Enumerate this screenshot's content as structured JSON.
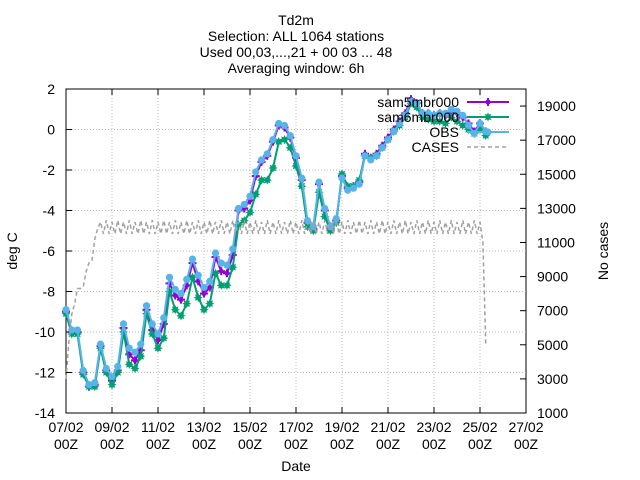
{
  "chart_data": {
    "type": "line",
    "title_lines": [
      "Td2m",
      "Selection: ALL   1064 stations",
      "Used 00,03,...,21 + 00 03 ... 48",
      "Averaging window:  6h"
    ],
    "xlabel": "Date",
    "ylabel": "deg C",
    "y2label": "No cases",
    "xlim": [
      0,
      20
    ],
    "ylim": [
      -14,
      2
    ],
    "y2lim": [
      1000,
      20000
    ],
    "grid": true,
    "legend_position": "top-right",
    "x_ticks": [
      {
        "x": 0,
        "line1": "07/02",
        "line2": "00Z"
      },
      {
        "x": 2,
        "line1": "09/02",
        "line2": "00Z"
      },
      {
        "x": 4,
        "line1": "11/02",
        "line2": "00Z"
      },
      {
        "x": 6,
        "line1": "13/02",
        "line2": "00Z"
      },
      {
        "x": 8,
        "line1": "15/02",
        "line2": "00Z"
      },
      {
        "x": 10,
        "line1": "17/02",
        "line2": "00Z"
      },
      {
        "x": 12,
        "line1": "19/02",
        "line2": "00Z"
      },
      {
        "x": 14,
        "line1": "21/02",
        "line2": "00Z"
      },
      {
        "x": 16,
        "line1": "23/02",
        "line2": "00Z"
      },
      {
        "x": 18,
        "line1": "25/02",
        "line2": "00Z"
      },
      {
        "x": 20,
        "line1": "27/02",
        "line2": "00Z"
      }
    ],
    "y_ticks": [
      "2",
      "0",
      "-2",
      "-4",
      "-6",
      "-8",
      "-10",
      "-12",
      "-14"
    ],
    "y2_ticks": [
      "19000",
      "17000",
      "15000",
      "13000",
      "11000",
      "9000",
      "7000",
      "5000",
      "3000",
      "1000"
    ],
    "series": [
      {
        "name": "sam5mbr000",
        "color": "#9400d3",
        "axis": "y",
        "marker": "plus",
        "x": [
          0,
          0.25,
          0.5,
          0.75,
          1.0,
          1.25,
          1.5,
          1.75,
          2.0,
          2.25,
          2.5,
          2.75,
          3.0,
          3.25,
          3.5,
          3.75,
          4.0,
          4.25,
          4.5,
          4.75,
          5.0,
          5.25,
          5.5,
          5.75,
          6.0,
          6.25,
          6.5,
          6.75,
          7.0,
          7.25,
          7.5,
          7.75,
          8.0,
          8.25,
          8.5,
          8.75,
          9.0,
          9.25,
          9.5,
          9.75,
          10.0,
          10.25,
          10.5,
          10.75,
          11.0,
          11.25,
          11.5,
          11.75,
          12.0,
          12.25,
          12.5,
          12.75,
          13.0,
          13.25,
          13.5,
          13.75,
          14.0,
          14.25,
          14.5,
          14.75,
          15.0,
          15.25,
          15.5,
          15.75,
          16.0,
          16.25,
          16.5,
          16.75,
          17.0,
          17.25,
          17.5,
          17.75,
          18.0,
          18.25
        ],
        "values": [
          -9.0,
          -10.0,
          -10.0,
          -12.0,
          -12.7,
          -12.6,
          -10.7,
          -11.9,
          -12.4,
          -11.9,
          -9.8,
          -11.1,
          -11.4,
          -10.9,
          -8.9,
          -9.9,
          -10.4,
          -9.6,
          -7.6,
          -8.2,
          -8.4,
          -7.7,
          -6.6,
          -7.5,
          -8.1,
          -7.8,
          -6.3,
          -7.0,
          -7.1,
          -6.2,
          -4.0,
          -3.9,
          -3.5,
          -2.3,
          -1.6,
          -1.3,
          -0.6,
          0.2,
          0.1,
          -0.4,
          -1.4,
          -2.5,
          -4.6,
          -4.9,
          -2.7,
          -4.0,
          -4.9,
          -4.5,
          -2.3,
          -2.9,
          -2.8,
          -2.6,
          -1.2,
          -1.4,
          -1.2,
          -0.8,
          -0.4,
          0.0,
          0.4,
          0.8,
          1.5,
          1.3,
          0.8,
          0.8,
          0.7,
          0.8,
          0.7,
          0.9,
          0.8,
          0.6,
          0.3,
          -0.1,
          0.3,
          -0.1
        ]
      },
      {
        "name": "sam6mbr000",
        "color": "#009e73",
        "axis": "y",
        "marker": "star",
        "x": [
          0,
          0.25,
          0.5,
          0.75,
          1.0,
          1.25,
          1.5,
          1.75,
          2.0,
          2.25,
          2.5,
          2.75,
          3.0,
          3.25,
          3.5,
          3.75,
          4.0,
          4.25,
          4.5,
          4.75,
          5.0,
          5.25,
          5.5,
          5.75,
          6.0,
          6.25,
          6.5,
          6.75,
          7.0,
          7.25,
          7.5,
          7.75,
          8.0,
          8.25,
          8.5,
          8.75,
          9.0,
          9.25,
          9.5,
          9.75,
          10.0,
          10.25,
          10.5,
          10.75,
          11.0,
          11.25,
          11.5,
          11.75,
          12.0,
          12.25,
          12.5,
          12.75,
          13.0,
          13.25,
          13.5,
          13.75,
          14.0,
          14.25,
          14.5,
          14.75,
          15.0,
          15.25,
          15.5,
          15.75,
          16.0,
          16.25,
          16.5,
          16.75,
          17.0,
          17.25,
          17.5,
          17.75,
          18.0,
          18.25
        ],
        "values": [
          -9.1,
          -10.1,
          -10.1,
          -12.1,
          -12.7,
          -12.7,
          -10.8,
          -12.0,
          -12.6,
          -12.0,
          -10.0,
          -11.6,
          -11.8,
          -11.2,
          -9.1,
          -10.1,
          -10.8,
          -10.3,
          -8.0,
          -8.9,
          -9.2,
          -8.6,
          -7.3,
          -8.3,
          -8.9,
          -8.6,
          -7.1,
          -7.7,
          -7.7,
          -6.8,
          -4.7,
          -4.5,
          -4.1,
          -3.2,
          -2.5,
          -2.5,
          -1.9,
          -0.6,
          -0.5,
          -0.9,
          -1.8,
          -2.8,
          -4.8,
          -5.0,
          -3.1,
          -4.3,
          -5.0,
          -4.6,
          -2.2,
          -2.8,
          -2.8,
          -2.5,
          -1.3,
          -1.4,
          -1.3,
          -0.9,
          -0.5,
          -0.1,
          0.2,
          0.6,
          1.3,
          1.1,
          0.6,
          0.5,
          0.4,
          0.4,
          0.3,
          0.6,
          0.4,
          0.2,
          0.0,
          -0.2,
          0.0,
          -0.3
        ]
      },
      {
        "name": "OBS",
        "color": "#56b4e9",
        "axis": "y",
        "marker": "circle",
        "x": [
          0,
          0.25,
          0.5,
          0.75,
          1.0,
          1.25,
          1.5,
          1.75,
          2.0,
          2.25,
          2.5,
          2.75,
          3.0,
          3.25,
          3.5,
          3.75,
          4.0,
          4.25,
          4.5,
          4.75,
          5.0,
          5.25,
          5.5,
          5.75,
          6.0,
          6.25,
          6.5,
          6.75,
          7.0,
          7.25,
          7.5,
          7.75,
          8.0,
          8.25,
          8.5,
          8.75,
          9.0,
          9.25,
          9.5,
          9.75,
          10.0,
          10.25,
          10.5,
          10.75,
          11.0,
          11.25,
          11.5,
          11.75,
          12.0,
          12.25,
          12.5,
          12.75,
          13.0,
          13.25,
          13.5,
          13.75,
          14.0,
          14.25,
          14.5,
          14.75,
          15.0,
          15.25,
          15.5,
          15.75,
          16.0,
          16.25,
          16.5,
          16.75,
          17.0,
          17.25,
          17.5,
          17.75,
          18.0,
          18.25
        ],
        "values": [
          -8.9,
          -9.9,
          -9.9,
          -11.9,
          -12.6,
          -12.5,
          -10.6,
          -11.8,
          -12.2,
          -11.7,
          -9.6,
          -10.8,
          -11.0,
          -10.6,
          -8.7,
          -9.6,
          -10.1,
          -9.3,
          -7.3,
          -7.9,
          -8.1,
          -7.4,
          -6.4,
          -7.2,
          -7.8,
          -7.5,
          -6.1,
          -6.6,
          -6.7,
          -5.9,
          -3.9,
          -3.7,
          -3.3,
          -2.1,
          -1.5,
          -1.2,
          -0.5,
          0.3,
          0.2,
          -0.3,
          -1.3,
          -2.4,
          -4.5,
          -4.8,
          -2.6,
          -3.9,
          -4.8,
          -4.4,
          -2.4,
          -3.0,
          -2.9,
          -2.7,
          -1.3,
          -1.5,
          -1.3,
          -0.9,
          -0.5,
          -0.1,
          0.3,
          0.7,
          1.4,
          1.3,
          0.8,
          0.8,
          0.7,
          0.8,
          0.8,
          1.0,
          0.9,
          0.7,
          0.2,
          -0.2,
          0.3,
          -0.1
        ]
      },
      {
        "name": "CASES",
        "color": "#a0a0a0",
        "axis": "y2",
        "marker": "none",
        "x": [
          0,
          0.125,
          0.25,
          0.375,
          0.5,
          0.625,
          0.75,
          0.875,
          1.0,
          1.125,
          1.25,
          1.375,
          1.5,
          1.625,
          1.75,
          1.875,
          2.0,
          2.125,
          2.25,
          2.375,
          2.5,
          2.625,
          2.75,
          2.875,
          3.0,
          3.125,
          3.25,
          3.375,
          3.5,
          3.625,
          3.75,
          3.875,
          4.0,
          4.125,
          4.25,
          4.375,
          4.5,
          4.625,
          4.75,
          4.875,
          5.0,
          5.125,
          5.25,
          5.375,
          5.5,
          5.625,
          5.75,
          5.875,
          6.0,
          6.125,
          6.25,
          6.375,
          6.5,
          6.625,
          6.75,
          6.875,
          7.0,
          7.125,
          7.25,
          7.375,
          7.5,
          7.625,
          7.75,
          7.875,
          8.0,
          8.125,
          8.25,
          8.375,
          8.5,
          8.625,
          8.75,
          8.875,
          9.0,
          9.125,
          9.25,
          9.375,
          9.5,
          9.625,
          9.75,
          9.875,
          10.0,
          10.125,
          10.25,
          10.375,
          10.5,
          10.625,
          10.75,
          10.875,
          11.0,
          11.125,
          11.25,
          11.375,
          11.5,
          11.625,
          11.75,
          11.875,
          12.0,
          12.125,
          12.25,
          12.375,
          12.5,
          12.625,
          12.75,
          12.875,
          13.0,
          13.125,
          13.25,
          13.375,
          13.5,
          13.625,
          13.75,
          13.875,
          14.0,
          14.125,
          14.25,
          14.375,
          14.5,
          14.625,
          14.75,
          14.875,
          15.0,
          15.125,
          15.25,
          15.375,
          15.5,
          15.625,
          15.75,
          15.875,
          16.0,
          16.125,
          16.25,
          16.375,
          16.5,
          16.625,
          16.75,
          16.875,
          17.0,
          17.125,
          17.25,
          17.375,
          17.5,
          17.625,
          17.75,
          17.875,
          18.0,
          18.125,
          18.25
        ],
        "values": [
          3000,
          5200,
          6800,
          7400,
          8300,
          8300,
          8400,
          9300,
          9800,
          9900,
          11200,
          11800,
          12200,
          11500,
          12300,
          11500,
          12200,
          11500,
          12300,
          11500,
          12200,
          11500,
          12300,
          11500,
          12200,
          11500,
          12300,
          11500,
          12200,
          11500,
          12300,
          11500,
          12200,
          11500,
          12300,
          11500,
          12200,
          11500,
          12300,
          11500,
          12200,
          11500,
          12300,
          11500,
          12200,
          11500,
          12300,
          11500,
          12200,
          11500,
          12300,
          11500,
          12200,
          11500,
          12300,
          11500,
          12200,
          11500,
          12300,
          11500,
          12200,
          11500,
          12300,
          11500,
          12200,
          11500,
          12300,
          11500,
          12200,
          11500,
          12300,
          11500,
          12200,
          11500,
          12300,
          11500,
          12200,
          11500,
          12300,
          11500,
          12200,
          11500,
          12300,
          11500,
          12200,
          11500,
          12300,
          11500,
          12200,
          11500,
          12300,
          11500,
          12200,
          11500,
          12300,
          11500,
          12200,
          11500,
          12300,
          11500,
          12200,
          11500,
          12300,
          11500,
          12200,
          11500,
          12300,
          11500,
          12200,
          11500,
          12300,
          11500,
          12200,
          11500,
          12300,
          11500,
          12200,
          11500,
          12300,
          11500,
          12200,
          11500,
          12300,
          11500,
          12200,
          11500,
          12300,
          11500,
          12200,
          11500,
          12300,
          11500,
          12200,
          11500,
          12300,
          11500,
          12200,
          11500,
          12300,
          11500,
          12200,
          11500,
          12300,
          11500,
          12200,
          11000,
          5000
        ]
      }
    ]
  }
}
